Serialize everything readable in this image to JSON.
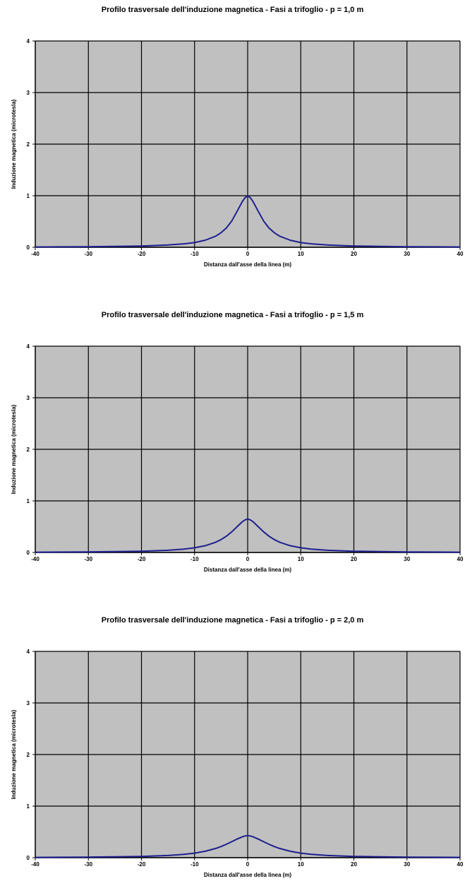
{
  "chart_data": [
    {
      "type": "line",
      "title": "Profilo trasversale dell'induzione magnetica - Fasi a trifoglio - p = 1,0 m",
      "xlabel": "Distanza dall'asse della linea (m)",
      "ylabel": "Induzione magnetica (microtesla)",
      "xlim": [
        -40,
        40
      ],
      "ylim": [
        0,
        4
      ],
      "xticks": [
        "-40",
        "-30",
        "-20",
        "-10",
        "0",
        "10",
        "20",
        "30",
        "40"
      ],
      "yticks": [
        "0",
        "1",
        "2",
        "3",
        "4"
      ],
      "grid": true,
      "plot_background": "#c0c0c0",
      "line_color": "#1f1f8f",
      "series": [
        {
          "x": [
            -40,
            -35,
            -30,
            -25,
            -20,
            -15,
            -12,
            -10,
            -8,
            -6,
            -5,
            -4,
            -3,
            -2,
            -1,
            -0.5,
            0,
            0.5,
            1,
            2,
            3,
            4,
            5,
            6,
            8,
            10,
            12,
            15,
            20,
            25,
            30,
            35,
            40
          ],
          "values": [
            0.006,
            0.008,
            0.011,
            0.016,
            0.025,
            0.044,
            0.067,
            0.091,
            0.137,
            0.217,
            0.283,
            0.376,
            0.51,
            0.694,
            0.888,
            0.96,
            1.0,
            0.96,
            0.888,
            0.694,
            0.51,
            0.376,
            0.283,
            0.217,
            0.137,
            0.091,
            0.067,
            0.044,
            0.025,
            0.016,
            0.011,
            0.008,
            0.006
          ]
        }
      ]
    },
    {
      "type": "line",
      "title": "Profilo trasversale dell'induzione magnetica - Fasi a trifoglio - p = 1,5 m",
      "xlabel": "Distanza dall'asse della linea (m)",
      "ylabel": "Induzione magnetica (microtesla)",
      "xlim": [
        -40,
        40
      ],
      "ylim": [
        0,
        4
      ],
      "xticks": [
        "-40",
        "-30",
        "-20",
        "-10",
        "0",
        "10",
        "20",
        "30",
        "40"
      ],
      "yticks": [
        "0",
        "1",
        "2",
        "3",
        "4"
      ],
      "grid": true,
      "plot_background": "#c0c0c0",
      "line_color": "#1f1f8f",
      "series": [
        {
          "x": [
            -40,
            -35,
            -30,
            -25,
            -20,
            -15,
            -12,
            -10,
            -8,
            -6,
            -5,
            -4,
            -3,
            -2,
            -1,
            -0.5,
            0,
            0.5,
            1,
            2,
            3,
            4,
            5,
            6,
            8,
            10,
            12,
            15,
            20,
            25,
            30,
            35,
            40
          ],
          "values": [
            0.006,
            0.008,
            0.011,
            0.016,
            0.025,
            0.043,
            0.066,
            0.09,
            0.132,
            0.2,
            0.251,
            0.317,
            0.4,
            0.498,
            0.597,
            0.632,
            0.65,
            0.632,
            0.597,
            0.498,
            0.4,
            0.317,
            0.251,
            0.2,
            0.132,
            0.09,
            0.066,
            0.043,
            0.025,
            0.016,
            0.011,
            0.008,
            0.006
          ]
        }
      ]
    },
    {
      "type": "line",
      "title": "Profilo trasversale dell'induzione magnetica - Fasi a trifoglio - p = 2,0 m",
      "xlabel": "Distanza dall'asse della linea (m)",
      "ylabel": "Induzione magnetica (microtesla)",
      "xlim": [
        -40,
        40
      ],
      "ylim": [
        0,
        4
      ],
      "xticks": [
        "-40",
        "-30",
        "-20",
        "-10",
        "0",
        "10",
        "20",
        "30",
        "40"
      ],
      "yticks": [
        "0",
        "1",
        "2",
        "3",
        "4"
      ],
      "grid": true,
      "plot_background": "#c0c0c0",
      "line_color": "#1f1f8f",
      "series": [
        {
          "x": [
            -40,
            -35,
            -30,
            -25,
            -20,
            -15,
            -12,
            -10,
            -8,
            -6,
            -5,
            -4,
            -3,
            -2,
            -1,
            -0.5,
            0,
            0.5,
            1,
            2,
            3,
            4,
            5,
            6,
            8,
            10,
            12,
            15,
            20,
            25,
            30,
            35,
            40
          ],
          "values": [
            0.006,
            0.008,
            0.011,
            0.016,
            0.025,
            0.043,
            0.064,
            0.087,
            0.125,
            0.18,
            0.216,
            0.26,
            0.31,
            0.36,
            0.405,
            0.421,
            0.43,
            0.421,
            0.405,
            0.36,
            0.31,
            0.26,
            0.216,
            0.18,
            0.125,
            0.087,
            0.064,
            0.043,
            0.025,
            0.016,
            0.011,
            0.008,
            0.006
          ]
        }
      ]
    }
  ]
}
